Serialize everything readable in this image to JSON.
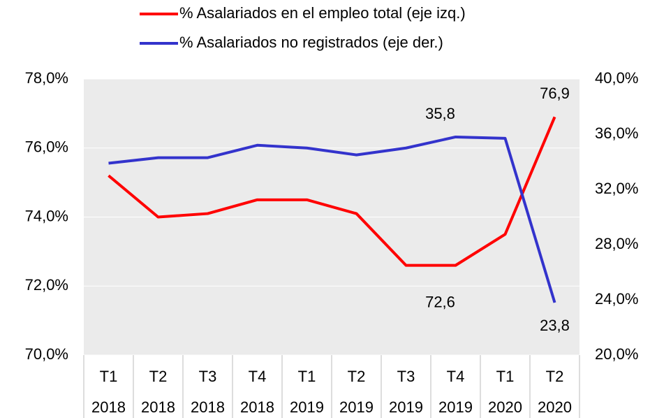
{
  "chart_data": {
    "type": "line",
    "categories": [
      [
        "T1",
        "2018"
      ],
      [
        "T2",
        "2018"
      ],
      [
        "T3",
        "2018"
      ],
      [
        "T4",
        "2018"
      ],
      [
        "T1",
        "2019"
      ],
      [
        "T2",
        "2019"
      ],
      [
        "T3",
        "2019"
      ],
      [
        "T4",
        "2019"
      ],
      [
        "T1",
        "2020"
      ],
      [
        "T2",
        "2020"
      ]
    ],
    "series": [
      {
        "name": "% Asalariados en el empleo total (eje izq.)",
        "color": "#ff0000",
        "values": [
          75.2,
          74.0,
          74.1,
          74.5,
          74.5,
          74.1,
          72.6,
          72.6,
          73.5,
          76.9
        ],
        "value_labels": [
          null,
          null,
          null,
          null,
          null,
          null,
          null,
          "72,6",
          null,
          "76,9"
        ]
      },
      {
        "name": "% Asalariados no registrados (eje der.)",
        "color": "#3333cc",
        "axis": "y2",
        "values": [
          33.9,
          34.3,
          34.3,
          35.2,
          35.0,
          34.5,
          35.0,
          35.8,
          35.7,
          23.8
        ],
        "value_labels": [
          null,
          null,
          null,
          null,
          null,
          null,
          null,
          "35,8",
          null,
          "23,8"
        ]
      }
    ],
    "ylim": [
      70,
      78
    ],
    "yticks": [
      {
        "value": 70,
        "label": "70,0%"
      },
      {
        "value": 72,
        "label": "72,0%"
      },
      {
        "value": 74,
        "label": "74,0%"
      },
      {
        "value": 76,
        "label": "76,0%"
      },
      {
        "value": 78,
        "label": "78,0%"
      }
    ],
    "y2lim": [
      20,
      40
    ],
    "y2ticks": [
      {
        "value": 20,
        "label": "20,0%"
      },
      {
        "value": 24,
        "label": "24,0%"
      },
      {
        "value": 28,
        "label": "28,0%"
      },
      {
        "value": 32,
        "label": "32,0%"
      },
      {
        "value": 36,
        "label": "36,0%"
      },
      {
        "value": 40,
        "label": "40,0%"
      }
    ],
    "grid": true
  }
}
